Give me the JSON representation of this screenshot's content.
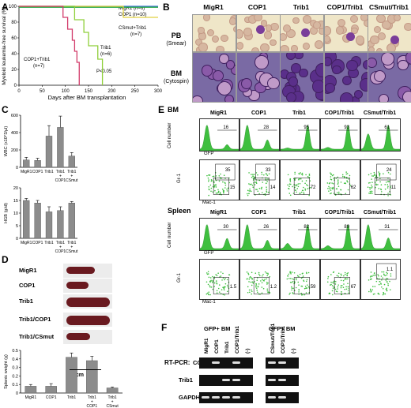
{
  "panels": {
    "A": "A",
    "B": "B",
    "C": "C",
    "D": "D",
    "E": "E",
    "F": "F"
  },
  "panelA": {
    "ylabel": "Myeloid leukemia-free survival (%)",
    "xlabel": "Days after BM transplantation",
    "legend_migr1": "MigR1 (n=6)",
    "legend_cop1": "COP1 (n=10)",
    "csmut": "CSmut+Trib1",
    "csmut_n": "(n=7)",
    "trib1": "Trib1",
    "trib1_n": "(n=6)",
    "coptrib": "COP1+Trib1",
    "coptrib_n": "(n=7)",
    "pval": "P<0.05",
    "colors": {
      "migr1": "#3b6fd0",
      "cop1": "#2aa84a",
      "trib1": "#8fcf3a",
      "coptrib": "#d23b6a",
      "csmut": "#e0d040"
    }
  },
  "chart_data": [
    {
      "type": "line",
      "title": "",
      "xlabel": "Days after BM transplantation",
      "ylabel": "Myeloid leukemia-free survival (%)",
      "xlim": [
        0,
        300
      ],
      "ylim": [
        0,
        100
      ],
      "xticks": [
        "0",
        "50",
        "100",
        "150",
        "200",
        "250",
        "300"
      ],
      "yticks": [
        "0",
        "20",
        "40",
        "60",
        "80",
        "100"
      ],
      "series": [
        {
          "name": "MigR1",
          "x": [
            0,
            300
          ],
          "y": [
            100,
            100
          ]
        },
        {
          "name": "COP1",
          "x": [
            0,
            300
          ],
          "y": [
            100,
            100
          ]
        },
        {
          "name": "CSmut+Trib1",
          "x": [
            0,
            225,
            225,
            300
          ],
          "y": [
            100,
            100,
            86,
            86
          ]
        },
        {
          "name": "Trib1",
          "x": [
            0,
            120,
            120,
            140,
            140,
            150,
            150,
            170,
            170,
            180,
            180
          ],
          "y": [
            100,
            100,
            83,
            83,
            67,
            67,
            50,
            50,
            33,
            33,
            0
          ]
        },
        {
          "name": "COP1+Trib1",
          "x": [
            0,
            95,
            95,
            105,
            105,
            115,
            115,
            120,
            120,
            125,
            125,
            130,
            130
          ],
          "y": [
            100,
            100,
            86,
            86,
            71,
            71,
            57,
            57,
            43,
            43,
            29,
            29,
            0
          ]
        }
      ]
    },
    {
      "type": "bar",
      "title": "",
      "ylabel": "WBC (x10^3/µl)",
      "categories": [
        "MigR1",
        "COP1",
        "Trib1",
        "Trib1 + COP1",
        "Trib1 + CSmut"
      ],
      "values": [
        85,
        80,
        360,
        460,
        130
      ],
      "errors": [
        30,
        25,
        120,
        130,
        40
      ],
      "ylim": [
        0,
        600
      ],
      "yticks": [
        "0",
        "200",
        "400",
        "600"
      ]
    },
    {
      "type": "bar",
      "title": "",
      "ylabel": "HGB (g/dl)",
      "categories": [
        "MigR1",
        "COP1",
        "Trib1",
        "Trib1 + COP1",
        "Trib1 + CSmut"
      ],
      "values": [
        15,
        14,
        10.5,
        11,
        14
      ],
      "errors": [
        0.8,
        1.0,
        2.0,
        1.5,
        0.6
      ],
      "ylim": [
        0,
        20
      ],
      "yticks": [
        "0",
        "5",
        "10",
        "15",
        "20"
      ]
    },
    {
      "type": "bar",
      "title": "",
      "ylabel": "Splenic weight (g)",
      "categories": [
        "MigR1",
        "COP1",
        "Trib1",
        "Trib1 + COP1",
        "Trib1 + CSmut"
      ],
      "values": [
        0.08,
        0.08,
        0.42,
        0.38,
        0.06
      ],
      "errors": [
        0.02,
        0.03,
        0.05,
        0.05,
        0.01
      ],
      "ylim": [
        0,
        0.5
      ],
      "yticks": [
        "0",
        "0.1",
        "0.2",
        "0.3",
        "0.4",
        "0.5"
      ]
    }
  ],
  "panelB": {
    "cols": [
      "MigR1",
      "COP1",
      "Trib1",
      "COP1/Trib1",
      "CSmut/Trib1"
    ],
    "row1": "PB",
    "row1sub": "(Smear)",
    "row2": "BM",
    "row2sub": "(Cytospin)"
  },
  "panelD": {
    "rows": [
      "MigR1",
      "COP1",
      "Trib1",
      "Trib1/COP1",
      "Trib1/CSmut"
    ],
    "scale": "1cm"
  },
  "panelE": {
    "bm": "BM",
    "spleen": "Spleen",
    "cols": [
      "MigR1",
      "COP1",
      "Trib1",
      "COP1/Trib1",
      "CSmut/Trib1"
    ],
    "cellnum": "Cell number",
    "gfp": "GFP",
    "gr1": "Gr-1",
    "mac1": "Mac-1",
    "bm_hist": [
      "16",
      "28",
      "95",
      "93",
      "61"
    ],
    "bm_dot_top": [
      "35",
      "33",
      "",
      "",
      "24"
    ],
    "bm_dot_bot": [
      "15",
      "14",
      "72",
      "62",
      "11"
    ],
    "sp_hist": [
      "30",
      "26",
      "82",
      "89",
      "31"
    ],
    "sp_dot_top": [
      "",
      "",
      "",
      "",
      "1.1"
    ],
    "sp_dot_bot": [
      "1.5",
      "1.2",
      "59",
      "67",
      ""
    ],
    "color": "#3fbf3f"
  },
  "panelF": {
    "h1": "GFP+ BM",
    "h2": "GFP+ BM",
    "lanes1": [
      "MigR1",
      "COP1",
      "Trib1",
      "COP1/Trib1",
      "(-)"
    ],
    "lanes2": [
      "CSmut/Trib1",
      "COP1/Trib1",
      "(-)"
    ],
    "rtpcr": "RT-PCR:",
    "genes": [
      "COP1",
      "Trib1",
      "GAPDH"
    ]
  }
}
